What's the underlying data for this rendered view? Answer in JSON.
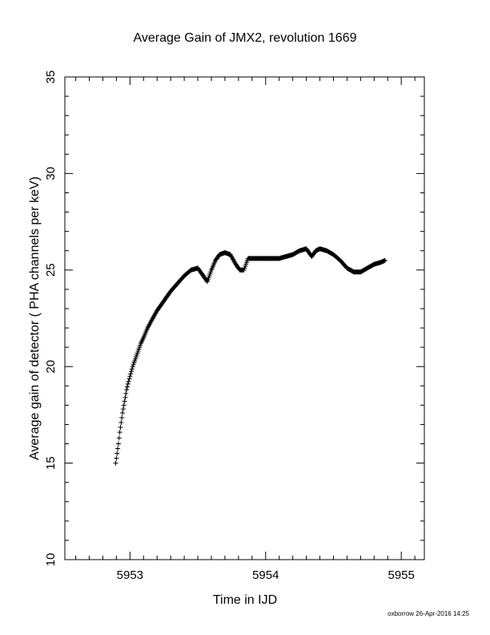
{
  "chart_data": {
    "type": "scatter",
    "title": "Average Gain of JMX2, revolution 1669",
    "xlabel": "Time in IJD",
    "ylabel": "Average gain of detector ( PHA channels per keV)",
    "xlim": [
      5952.52,
      5955.17
    ],
    "ylim": [
      10,
      35
    ],
    "x_ticks": [
      "5953",
      "5954",
      "5955"
    ],
    "y_ticks": [
      "10",
      "15",
      "20",
      "25",
      "30",
      "35"
    ],
    "marker": "+",
    "grid": false,
    "legend": "none",
    "footer": "oxborrow 26-Apr-2016 14:25",
    "series": [
      {
        "x": [
          5952.895,
          5952.905,
          5952.915,
          5952.925,
          5952.935,
          5952.945,
          5952.955,
          5952.965,
          5952.975,
          5952.985,
          5953.0,
          5953.02,
          5953.04,
          5953.06,
          5953.08,
          5953.1,
          5953.13,
          5953.16,
          5953.2,
          5953.25,
          5953.3,
          5953.35,
          5953.4,
          5953.45,
          5953.5,
          5953.54,
          5953.57,
          5953.6,
          5953.63,
          5953.66,
          5953.7,
          5953.74,
          5953.78,
          5953.81,
          5953.84,
          5953.87,
          5953.9,
          5953.95,
          5954.0,
          5954.1,
          5954.2,
          5954.25,
          5954.3,
          5954.34,
          5954.37,
          5954.4,
          5954.45,
          5954.5,
          5954.55,
          5954.6,
          5954.65,
          5954.7,
          5954.75,
          5954.8,
          5954.85,
          5954.88
        ],
        "y": [
          15.0,
          15.5,
          16.0,
          16.6,
          17.1,
          17.6,
          18.0,
          18.4,
          18.8,
          19.1,
          19.5,
          20.0,
          20.4,
          20.8,
          21.2,
          21.5,
          22.0,
          22.4,
          22.9,
          23.4,
          23.9,
          24.3,
          24.7,
          25.0,
          25.1,
          24.7,
          24.4,
          25.0,
          25.5,
          25.8,
          25.9,
          25.8,
          25.3,
          25.0,
          25.0,
          25.6,
          25.6,
          25.6,
          25.6,
          25.6,
          25.8,
          26.0,
          26.1,
          25.7,
          26.0,
          26.1,
          26.0,
          25.8,
          25.5,
          25.1,
          24.9,
          24.9,
          25.1,
          25.3,
          25.4,
          25.5
        ]
      }
    ]
  }
}
